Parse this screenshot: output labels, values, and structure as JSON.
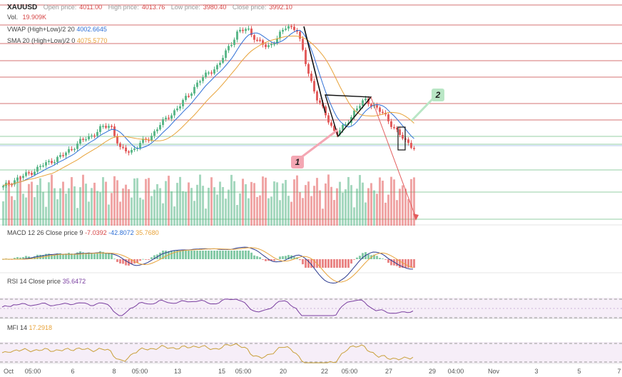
{
  "header": {
    "symbol": "XAUUSD",
    "open_label": "Open price:",
    "open_value": "4011.00",
    "high_label": "High price:",
    "high_value": "4013.76",
    "low_label": "Low price:",
    "low_value": "3980.40",
    "close_label": "Close price:",
    "close_value": "3992.10",
    "vol_label": "Vol.",
    "vol_value": "19.909K",
    "vwap_label": "VWAP (High+Low)/2 20",
    "vwap_value": "4002.6645",
    "sma_label": "SMA 20 (High+Low)/2 0",
    "sma_value": "4075.5770"
  },
  "macd": {
    "label": "MACD 12 26 Close price 9",
    "v1": "-7.0392",
    "v2": "-42.8072",
    "v3": "35.7680"
  },
  "rsi": {
    "label": "RSI 14 Close price",
    "value": "35.6472"
  },
  "mfi": {
    "label": "MFI 14",
    "value": "17.2918"
  },
  "annotations": {
    "marker1": "1",
    "marker2": "2"
  },
  "colors": {
    "up": "#5cb88a",
    "down": "#e35d5d",
    "vwap": "#2e6fd6",
    "sma": "#e8a33a",
    "rsi": "#7a3fa0",
    "mfi": "#c9a03a",
    "hline": "#c94545"
  },
  "chart_data": {
    "type": "candlestick",
    "symbol": "XAUUSD",
    "x_tick_labels": [
      "Oct",
      "05:00",
      "6",
      "8",
      "05:00",
      "13",
      "15",
      "05:00",
      "20",
      "22",
      "05:00",
      "27",
      "29",
      "04:00",
      "Nov",
      "3",
      "5",
      "7"
    ],
    "price_path_approx": [
      3860,
      3880,
      3895,
      3910,
      3930,
      3945,
      3960,
      3985,
      4010,
      4025,
      4050,
      4060,
      3980,
      3975,
      4000,
      4020,
      4060,
      4090,
      4120,
      4160,
      4200,
      4230,
      4250,
      4310,
      4360,
      4370,
      4330,
      4310,
      4340,
      4380,
      4370,
      4250,
      4150,
      4090,
      4030,
      4060,
      4110,
      4140,
      4120,
      4090,
      4050,
      4010,
      3990
    ],
    "series": [
      {
        "name": "VWAP (High+Low)/2 20",
        "last": 4002.6645
      },
      {
        "name": "SMA 20 (High+Low)/2 0",
        "last": 4075.577
      }
    ],
    "indicators": {
      "macd": {
        "last": [
          -7.0392,
          -42.8072,
          35.768
        ]
      },
      "rsi": {
        "last": 35.6472
      },
      "mfi": {
        "last": 17.2918
      }
    }
  }
}
